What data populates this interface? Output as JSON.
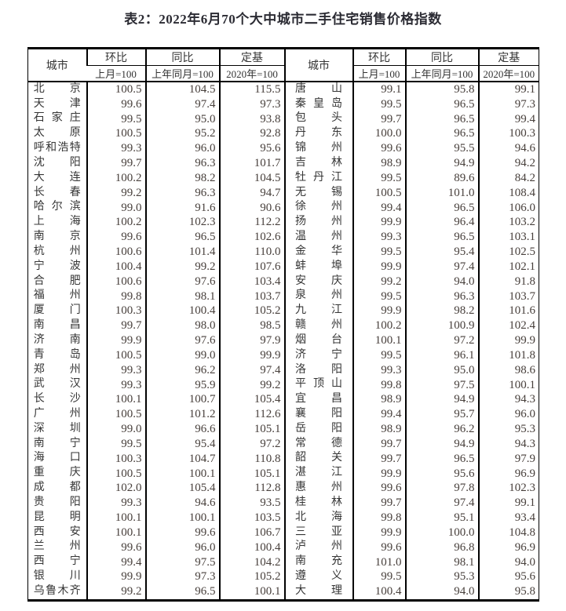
{
  "page": {
    "title": "表2：2022年6月70个大中城市二手住宅销售价格指数"
  },
  "colors": {
    "background": "#ffffff",
    "border": "#000000",
    "title_text": "#2b2b33",
    "body_text": "#363636",
    "number_text": "#473f3b"
  },
  "table": {
    "header": {
      "city_label": "城市",
      "groups": [
        {
          "label": "环比",
          "sub": "上月=100"
        },
        {
          "label": "同比",
          "sub": "上年同月=100"
        },
        {
          "label": "定基",
          "sub": "2020年=100"
        }
      ]
    },
    "rows": [
      {
        "left": {
          "city": "北京",
          "mom": "100.5",
          "yoy": "104.5",
          "base": "115.5"
        },
        "right": {
          "city": "唐山",
          "mom": "99.1",
          "yoy": "95.8",
          "base": "99.1"
        }
      },
      {
        "left": {
          "city": "天津",
          "mom": "99.6",
          "yoy": "97.4",
          "base": "97.3"
        },
        "right": {
          "city": "秦皇岛",
          "mom": "99.5",
          "yoy": "96.5",
          "base": "97.3"
        }
      },
      {
        "left": {
          "city": "石家庄",
          "mom": "99.5",
          "yoy": "95.0",
          "base": "93.8"
        },
        "right": {
          "city": "包头",
          "mom": "99.7",
          "yoy": "96.5",
          "base": "99.4"
        }
      },
      {
        "left": {
          "city": "太原",
          "mom": "100.5",
          "yoy": "95.2",
          "base": "92.8"
        },
        "right": {
          "city": "丹东",
          "mom": "100.0",
          "yoy": "96.5",
          "base": "100.3"
        }
      },
      {
        "left": {
          "city": "呼和浩特",
          "mom": "99.3",
          "yoy": "96.0",
          "base": "95.6"
        },
        "right": {
          "city": "锦州",
          "mom": "99.6",
          "yoy": "95.5",
          "base": "94.6"
        }
      },
      {
        "left": {
          "city": "沈阳",
          "mom": "99.7",
          "yoy": "96.3",
          "base": "101.7"
        },
        "right": {
          "city": "吉林",
          "mom": "98.9",
          "yoy": "94.9",
          "base": "94.2"
        }
      },
      {
        "left": {
          "city": "大连",
          "mom": "100.2",
          "yoy": "98.2",
          "base": "104.5"
        },
        "right": {
          "city": "牡丹江",
          "mom": "99.5",
          "yoy": "89.6",
          "base": "84.2"
        }
      },
      {
        "left": {
          "city": "长春",
          "mom": "99.2",
          "yoy": "96.3",
          "base": "94.7"
        },
        "right": {
          "city": "无锡",
          "mom": "100.5",
          "yoy": "101.0",
          "base": "108.4"
        }
      },
      {
        "left": {
          "city": "哈尔滨",
          "mom": "99.0",
          "yoy": "91.6",
          "base": "90.6"
        },
        "right": {
          "city": "徐州",
          "mom": "99.4",
          "yoy": "96.5",
          "base": "106.0"
        }
      },
      {
        "left": {
          "city": "上海",
          "mom": "100.2",
          "yoy": "102.3",
          "base": "112.2"
        },
        "right": {
          "city": "扬州",
          "mom": "99.9",
          "yoy": "96.4",
          "base": "103.2"
        }
      },
      {
        "left": {
          "city": "南京",
          "mom": "99.6",
          "yoy": "96.5",
          "base": "102.6"
        },
        "right": {
          "city": "温州",
          "mom": "99.3",
          "yoy": "96.5",
          "base": "103.1"
        }
      },
      {
        "left": {
          "city": "杭州",
          "mom": "100.6",
          "yoy": "101.4",
          "base": "110.0"
        },
        "right": {
          "city": "金华",
          "mom": "99.5",
          "yoy": "95.4",
          "base": "102.5"
        }
      },
      {
        "left": {
          "city": "宁波",
          "mom": "100.4",
          "yoy": "99.2",
          "base": "107.6"
        },
        "right": {
          "city": "蚌埠",
          "mom": "99.9",
          "yoy": "97.4",
          "base": "102.1"
        }
      },
      {
        "left": {
          "city": "合肥",
          "mom": "100.6",
          "yoy": "97.6",
          "base": "103.4"
        },
        "right": {
          "city": "安庆",
          "mom": "99.2",
          "yoy": "94.0",
          "base": "91.8"
        }
      },
      {
        "left": {
          "city": "福州",
          "mom": "99.8",
          "yoy": "98.1",
          "base": "103.7"
        },
        "right": {
          "city": "泉州",
          "mom": "99.5",
          "yoy": "96.3",
          "base": "103.7"
        }
      },
      {
        "left": {
          "city": "厦门",
          "mom": "100.3",
          "yoy": "100.4",
          "base": "105.2"
        },
        "right": {
          "city": "九江",
          "mom": "99.9",
          "yoy": "98.2",
          "base": "101.6"
        }
      },
      {
        "left": {
          "city": "南昌",
          "mom": "99.7",
          "yoy": "98.0",
          "base": "98.5"
        },
        "right": {
          "city": "赣州",
          "mom": "100.2",
          "yoy": "100.9",
          "base": "102.4"
        }
      },
      {
        "left": {
          "city": "济南",
          "mom": "99.9",
          "yoy": "97.6",
          "base": "97.9"
        },
        "right": {
          "city": "烟台",
          "mom": "100.1",
          "yoy": "97.2",
          "base": "99.9"
        }
      },
      {
        "left": {
          "city": "青岛",
          "mom": "100.5",
          "yoy": "99.0",
          "base": "99.9"
        },
        "right": {
          "city": "济宁",
          "mom": "99.5",
          "yoy": "96.1",
          "base": "101.8"
        }
      },
      {
        "left": {
          "city": "郑州",
          "mom": "99.3",
          "yoy": "96.2",
          "base": "97.4"
        },
        "right": {
          "city": "洛阳",
          "mom": "99.3",
          "yoy": "95.0",
          "base": "98.6"
        }
      },
      {
        "left": {
          "city": "武汉",
          "mom": "99.3",
          "yoy": "95.9",
          "base": "99.2"
        },
        "right": {
          "city": "平顶山",
          "mom": "99.8",
          "yoy": "97.5",
          "base": "100.1"
        }
      },
      {
        "left": {
          "city": "长沙",
          "mom": "100.1",
          "yoy": "100.7",
          "base": "105.4"
        },
        "right": {
          "city": "宜昌",
          "mom": "98.9",
          "yoy": "94.9",
          "base": "94.3"
        }
      },
      {
        "left": {
          "city": "广州",
          "mom": "100.5",
          "yoy": "101.2",
          "base": "112.6"
        },
        "right": {
          "city": "襄阳",
          "mom": "99.4",
          "yoy": "95.7",
          "base": "96.0"
        }
      },
      {
        "left": {
          "city": "深圳",
          "mom": "99.0",
          "yoy": "96.6",
          "base": "105.1"
        },
        "right": {
          "city": "岳阳",
          "mom": "98.9",
          "yoy": "96.2",
          "base": "95.3"
        }
      },
      {
        "left": {
          "city": "南宁",
          "mom": "99.5",
          "yoy": "95.4",
          "base": "97.2"
        },
        "right": {
          "city": "常德",
          "mom": "99.7",
          "yoy": "94.9",
          "base": "94.3"
        }
      },
      {
        "left": {
          "city": "海口",
          "mom": "100.3",
          "yoy": "104.7",
          "base": "110.8"
        },
        "right": {
          "city": "韶关",
          "mom": "99.7",
          "yoy": "96.5",
          "base": "97.9"
        }
      },
      {
        "left": {
          "city": "重庆",
          "mom": "100.5",
          "yoy": "100.1",
          "base": "105.1"
        },
        "right": {
          "city": "湛江",
          "mom": "99.9",
          "yoy": "95.6",
          "base": "96.9"
        }
      },
      {
        "left": {
          "city": "成都",
          "mom": "102.0",
          "yoy": "105.4",
          "base": "112.8"
        },
        "right": {
          "city": "惠州",
          "mom": "99.6",
          "yoy": "97.8",
          "base": "102.3"
        }
      },
      {
        "left": {
          "city": "贵阳",
          "mom": "99.3",
          "yoy": "94.6",
          "base": "93.5"
        },
        "right": {
          "city": "桂林",
          "mom": "99.7",
          "yoy": "97.4",
          "base": "99.1"
        }
      },
      {
        "left": {
          "city": "昆明",
          "mom": "100.1",
          "yoy": "100.1",
          "base": "103.5"
        },
        "right": {
          "city": "北海",
          "mom": "99.8",
          "yoy": "95.1",
          "base": "93.4"
        }
      },
      {
        "left": {
          "city": "西安",
          "mom": "100.1",
          "yoy": "99.6",
          "base": "106.7"
        },
        "right": {
          "city": "三亚",
          "mom": "99.9",
          "yoy": "100.0",
          "base": "104.8"
        }
      },
      {
        "left": {
          "city": "兰州",
          "mom": "99.6",
          "yoy": "96.0",
          "base": "100.4"
        },
        "right": {
          "city": "泸州",
          "mom": "99.6",
          "yoy": "96.8",
          "base": "96.9"
        }
      },
      {
        "left": {
          "city": "西宁",
          "mom": "99.4",
          "yoy": "97.5",
          "base": "104.2"
        },
        "right": {
          "city": "南充",
          "mom": "101.0",
          "yoy": "98.1",
          "base": "94.0"
        }
      },
      {
        "left": {
          "city": "银川",
          "mom": "99.9",
          "yoy": "97.3",
          "base": "105.2"
        },
        "right": {
          "city": "遵义",
          "mom": "99.5",
          "yoy": "95.3",
          "base": "95.6"
        }
      },
      {
        "left": {
          "city": "乌鲁木齐",
          "mom": "99.2",
          "yoy": "96.5",
          "base": "100.1"
        },
        "right": {
          "city": "大理",
          "mom": "100.4",
          "yoy": "94.0",
          "base": "95.8"
        }
      }
    ]
  }
}
